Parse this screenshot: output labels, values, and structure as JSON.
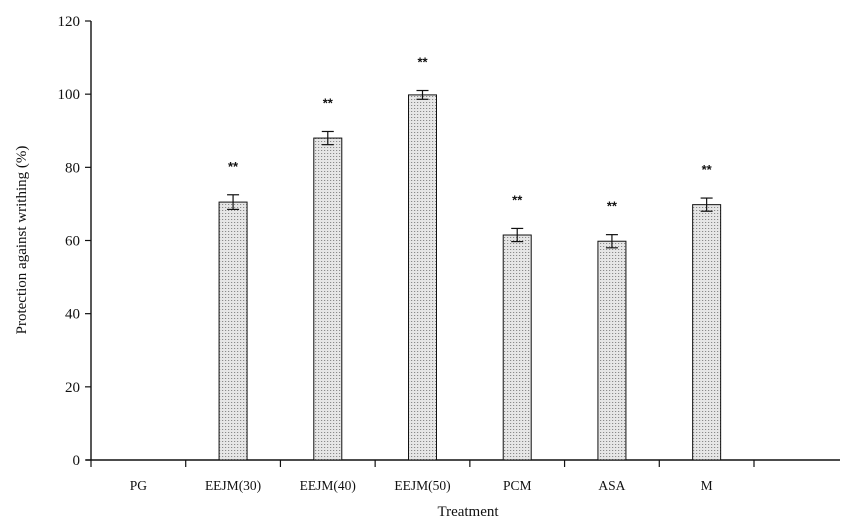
{
  "chart_data": {
    "type": "bar",
    "title": "",
    "xlabel": "Treatment",
    "ylabel": "Protection against writhing (%)",
    "ylim": [
      0,
      120
    ],
    "yticks": [
      0,
      20,
      40,
      60,
      80,
      100,
      120
    ],
    "yticks_text": [
      "0",
      "20",
      "40",
      "60",
      "80",
      "100",
      "120"
    ],
    "categories": [
      "PG",
      "EEJM(30)",
      "EEJM(40)",
      "EEJM(50)",
      "PCM",
      "ASA",
      "M"
    ],
    "values": [
      0,
      70.5,
      88,
      99.8,
      61.5,
      59.8,
      69.8
    ],
    "errors": [
      0,
      2,
      1.8,
      1.2,
      1.8,
      1.8,
      1.8
    ],
    "significance": [
      "",
      "**",
      "**",
      "**",
      "**",
      "**",
      "**"
    ],
    "grid": false,
    "legend": "none",
    "bar_pattern": "dotted-grey",
    "colors": {
      "bar_fill": "#e4e4e4",
      "bar_dots": "#8a8a8a",
      "axis": "#111111"
    }
  }
}
